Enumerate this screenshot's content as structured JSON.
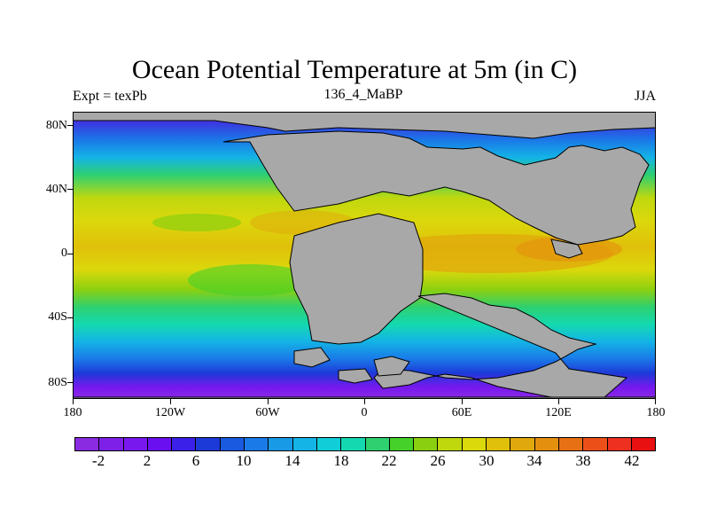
{
  "title": "Ocean Potential Temperature at 5m (in C)",
  "left_string": "Expt = texPb",
  "center_string": "136_4_MaBP",
  "right_string": "JJA",
  "y_ticks": [
    "80N",
    "40N",
    "0",
    "40S",
    "80S"
  ],
  "x_ticks": [
    "180",
    "120W",
    "60W",
    "0",
    "60E",
    "120E",
    "180"
  ],
  "colorbar": {
    "colors": [
      "#8a2be2",
      "#7f20e8",
      "#7818ee",
      "#6a10f0",
      "#3a20e8",
      "#1c3ad8",
      "#1a5ae0",
      "#1a7ae8",
      "#189ae6",
      "#14b4e6",
      "#10cdd8",
      "#14d9b0",
      "#2ed070",
      "#46d02a",
      "#8ad010",
      "#bfd80e",
      "#dbd80c",
      "#e0c00a",
      "#e0a80c",
      "#e4900e",
      "#e87014",
      "#ec5018",
      "#ee3020",
      "#e81010"
    ],
    "labels": [
      "-2",
      "2",
      "6",
      "10",
      "14",
      "18",
      "22",
      "26",
      "30",
      "34",
      "38",
      "42"
    ]
  },
  "land_color": "#a8a8a8"
}
